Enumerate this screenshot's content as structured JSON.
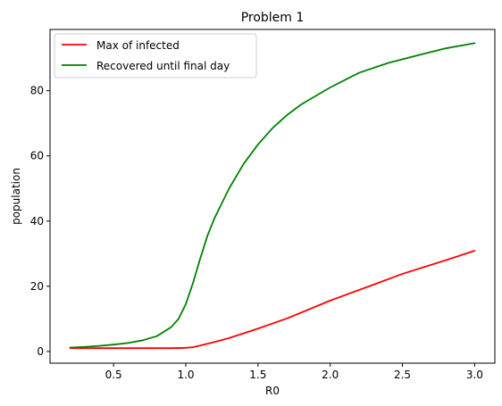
{
  "chart_data": {
    "type": "line",
    "title": "Problem 1",
    "xlabel": "R0",
    "ylabel": "population",
    "xlim": [
      0.06,
      3.14
    ],
    "ylim": [
      -3.6,
      98.8
    ],
    "xticks": [
      0.5,
      1.0,
      1.5,
      2.0,
      2.5,
      3.0
    ],
    "xtick_labels": [
      "0.5",
      "1.0",
      "1.5",
      "2.0",
      "2.5",
      "3.0"
    ],
    "yticks": [
      0,
      20,
      40,
      60,
      80
    ],
    "ytick_labels": [
      "0",
      "20",
      "40",
      "60",
      "80"
    ],
    "grid": false,
    "legend_position": "upper-left",
    "series": [
      {
        "name": "Max of infected",
        "color": "#ff0000",
        "x": [
          0.2,
          0.4,
          0.6,
          0.8,
          0.9,
          1.0,
          1.05,
          1.1,
          1.2,
          1.3,
          1.5,
          1.7,
          2.0,
          2.3,
          2.5,
          2.8,
          3.0
        ],
        "y": [
          1.0,
          1.0,
          1.0,
          1.0,
          1.0,
          1.1,
          1.3,
          1.8,
          2.9,
          4.1,
          7.0,
          10.1,
          15.6,
          20.5,
          23.8,
          28.0,
          30.9
        ]
      },
      {
        "name": "Recovered until final day",
        "color": "#008000",
        "x": [
          0.2,
          0.3,
          0.4,
          0.5,
          0.6,
          0.7,
          0.8,
          0.9,
          0.95,
          1.0,
          1.05,
          1.1,
          1.15,
          1.2,
          1.3,
          1.4,
          1.5,
          1.6,
          1.7,
          1.8,
          2.0,
          2.2,
          2.4,
          2.6,
          2.8,
          3.0
        ],
        "y": [
          1.2,
          1.4,
          1.7,
          2.1,
          2.6,
          3.4,
          4.7,
          7.5,
          10.0,
          14.5,
          21.0,
          28.5,
          35.5,
          41.0,
          50.0,
          57.5,
          63.5,
          68.5,
          72.5,
          75.8,
          81.0,
          85.5,
          88.5,
          90.8,
          93.0,
          94.6
        ]
      }
    ]
  }
}
